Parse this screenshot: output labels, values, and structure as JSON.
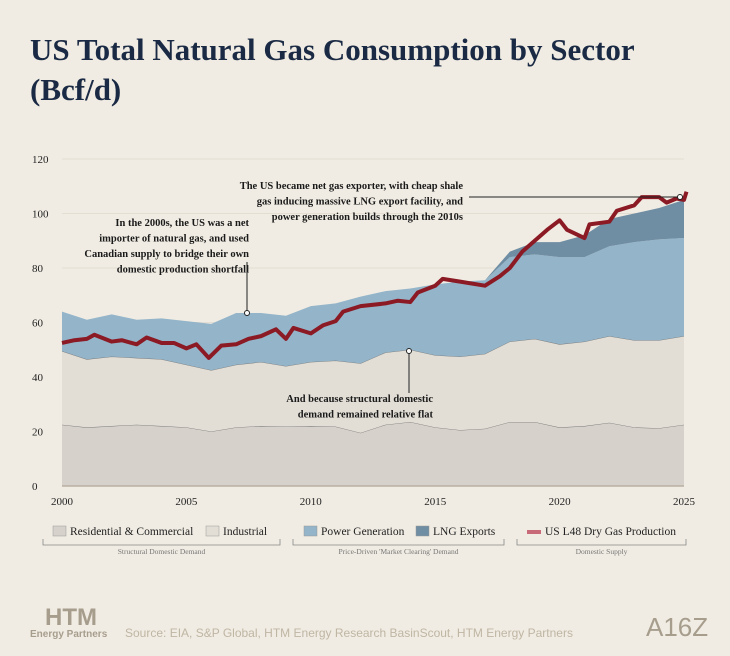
{
  "chart_data": {
    "type": "area",
    "title": "US Total Natural Gas Consumption by Sector (Bcf/d)",
    "xlim": [
      2000,
      2025
    ],
    "ylim": [
      0,
      120
    ],
    "x_ticks": [
      2000,
      2005,
      2010,
      2015,
      2020,
      2025
    ],
    "y_ticks": [
      0,
      20,
      40,
      60,
      80,
      100,
      120
    ],
    "years": [
      2000,
      2001,
      2002,
      2003,
      2004,
      2005,
      2006,
      2007,
      2008,
      2009,
      2010,
      2011,
      2012,
      2013,
      2014,
      2015,
      2016,
      2017,
      2018,
      2019,
      2020,
      2021,
      2022,
      2023,
      2024,
      2025
    ],
    "series": [
      {
        "name": "Residential & Commercial",
        "color": "#d6d1ca",
        "values": [
          22.5,
          21.5,
          22,
          22.5,
          22,
          21.5,
          20,
          21.5,
          22,
          21.8,
          22,
          21.8,
          19.5,
          22.5,
          23.5,
          21.5,
          20.5,
          21,
          23.5,
          23.5,
          21.5,
          22,
          23.2,
          21.5,
          21.2,
          22.5
        ]
      },
      {
        "name": "Industrial",
        "color": "#e2ded6",
        "values": [
          27,
          25,
          25.5,
          24.5,
          24.5,
          23,
          22.5,
          23,
          23.5,
          22.2,
          23.5,
          24.2,
          25.5,
          26.5,
          26.5,
          26.5,
          27,
          27.5,
          29.5,
          30.5,
          30.5,
          31,
          31.8,
          32,
          32.3,
          32.5
        ]
      },
      {
        "name": "Power Generation",
        "color": "#93b4c9",
        "values": [
          14.5,
          14.5,
          15.5,
          14,
          15,
          16,
          17,
          19,
          18,
          18.5,
          20.5,
          21,
          24.5,
          22.5,
          22.5,
          26,
          27.5,
          27,
          31,
          31,
          32,
          31,
          33,
          36,
          37,
          36
        ]
      },
      {
        "name": "LNG Exports",
        "color": "#6f8da3",
        "values": [
          0,
          0,
          0,
          0,
          0,
          0,
          0,
          0,
          0,
          0,
          0,
          0,
          0,
          0,
          0,
          0,
          0,
          0,
          2,
          4.5,
          5.5,
          8,
          10,
          10.5,
          11.5,
          14
        ]
      }
    ],
    "line": {
      "name": "US L48 Dry Gas Production",
      "color": "#8b1a24",
      "x": [
        2000,
        2000.5,
        2001,
        2001.3,
        2002,
        2002.4,
        2003,
        2003.4,
        2004,
        2004.5,
        2005,
        2005.4,
        2005.9,
        2006.4,
        2007,
        2007.5,
        2008,
        2008.6,
        2009,
        2009.3,
        2010,
        2010.5,
        2011,
        2011.3,
        2012,
        2013,
        2013.5,
        2014,
        2014.3,
        2015,
        2015.3,
        2016,
        2017,
        2017.6,
        2018,
        2018.5,
        2019,
        2019.5,
        2020,
        2020.3,
        2021,
        2021.2,
        2022,
        2022.3,
        2023,
        2023.3,
        2024,
        2024.3,
        2024.7,
        2025,
        2025.1
      ],
      "y": [
        52.5,
        53.5,
        54,
        55.5,
        53,
        53.5,
        52,
        54.5,
        52.5,
        52.5,
        50.5,
        52,
        47,
        51.5,
        52,
        54,
        55,
        57.5,
        54,
        58,
        56,
        59,
        60.5,
        64,
        66,
        67,
        68,
        67.5,
        71,
        73.5,
        76,
        75,
        73.5,
        77,
        80,
        86,
        90,
        94,
        97.5,
        94,
        91,
        96,
        97,
        101,
        103,
        106,
        106,
        104,
        105.5,
        105,
        108
      ]
    },
    "annotations": [
      "In the 2000s, the US was a net importer of natural gas, and used Canadian supply to bridge their own domestic production shortfall",
      "The US became net gas exporter, with cheap shale gas inducing massive LNG export facility, and power generation builds through the 2010s",
      "And because structural domestic demand remained relative flat"
    ],
    "ann_lines": [
      [
        "In the 2000s, the US was a net",
        "importer of natural gas, and used",
        "Canadian supply to bridge their own",
        "domestic production shortfall"
      ],
      [
        "The US became net gas exporter, with cheap shale",
        "gas inducing massive LNG export facility, and",
        "power generation builds through the 2010s"
      ],
      [
        "And because structural domestic",
        "demand remained relative flat"
      ]
    ],
    "legend_groups": [
      "Structural Domestic Demand",
      "Price-Driven 'Market Clearing' Demand",
      "Domestic Supply"
    ]
  },
  "footer": {
    "source": "Source: EIA, S&P Global, HTM Energy Research BasinScout, HTM Energy Partners",
    "logo_main": "HTM",
    "logo_sub": "Energy Partners",
    "logo_right": "A16Z"
  }
}
